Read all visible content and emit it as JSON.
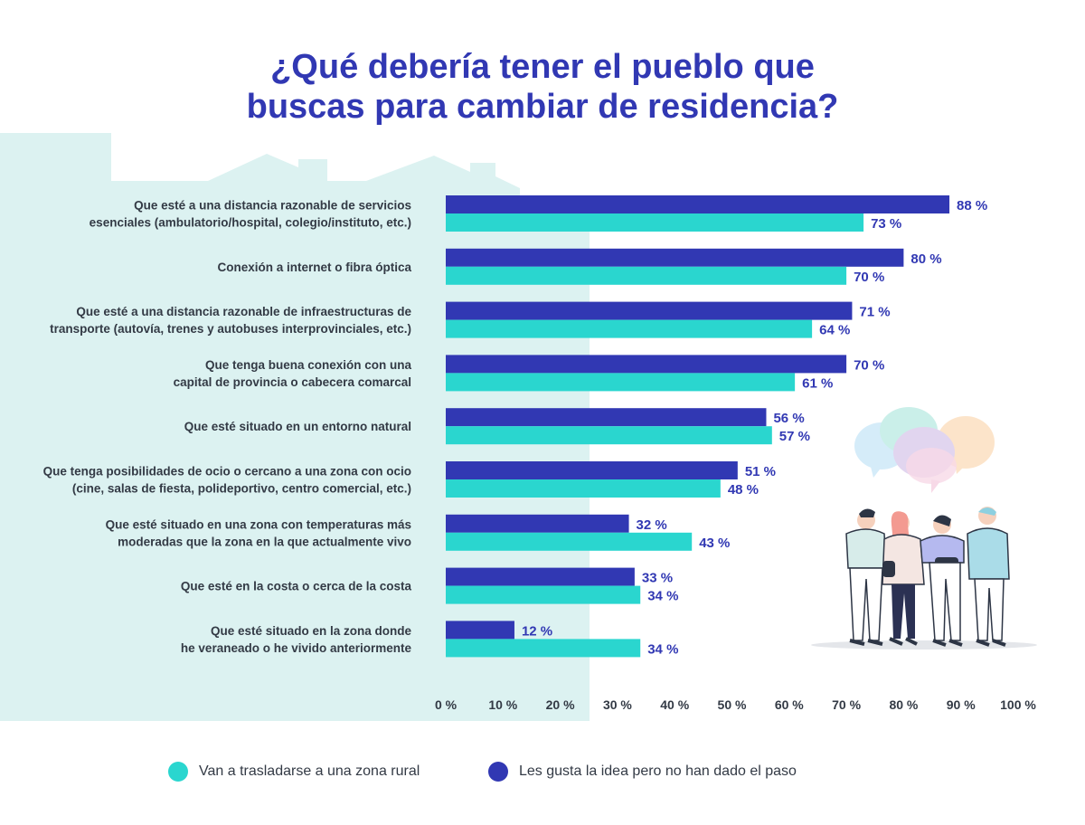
{
  "colors": {
    "rural": "#2ad6cf",
    "idea": "#3138b3",
    "title": "#3138b3",
    "label_text": "#333a45",
    "background_shape": "#dcf2f1"
  },
  "icons": [
    "house-skyline-shape",
    "speech-bubbles-illustration",
    "people-group-illustration"
  ],
  "chart_data": {
    "type": "bar",
    "orientation": "horizontal",
    "title_lines": [
      "¿Qué debería tener el pueblo que",
      "buscas para cambiar de residencia?"
    ],
    "categories": [
      [
        "Que esté a una distancia razonable de servicios",
        "esenciales (ambulatorio/hospital, colegio/instituto, etc.)"
      ],
      [
        "Conexión a internet o fibra óptica"
      ],
      [
        "Que esté a una distancia razonable de infraestructuras de",
        "transporte (autovía, trenes y autobuses interprovinciales, etc.)"
      ],
      [
        "Que tenga buena conexión con una",
        "capital de provincia o cabecera comarcal"
      ],
      [
        "Que esté situado en un entorno natural"
      ],
      [
        "Que tenga posibilidades de ocio o cercano a una zona con ocio",
        "(cine, salas de fiesta, polideportivo, centro comercial, etc.)"
      ],
      [
        "Que esté situado en una zona con temperaturas más",
        "moderadas que la zona en la que actualmente vivo"
      ],
      [
        "Que esté en la costa o cerca de la costa"
      ],
      [
        "Que esté situado en la zona donde",
        "he veraneado o he vivido anteriormente"
      ]
    ],
    "series": [
      {
        "name": "Les gusta la idea pero no han dado el paso",
        "values": [
          88,
          80,
          71,
          70,
          56,
          51,
          32,
          33,
          12
        ],
        "labels": [
          "88 %",
          "80 %",
          "71 %",
          "70 %",
          "56 %",
          "51 %",
          "32 %",
          "33 %",
          "12 %"
        ]
      },
      {
        "name": "Van a trasladarse a una zona rural",
        "values": [
          73,
          70,
          64,
          61,
          57,
          48,
          43,
          34,
          34
        ],
        "labels": [
          "73 %",
          "70 %",
          "64 %",
          "61 %",
          "57 %",
          "48 %",
          "43 %",
          "34 %",
          "34 %"
        ]
      }
    ],
    "x_ticks": [
      "0 %",
      "10 %",
      "20 %",
      "30 %",
      "40 %",
      "50 %",
      "60 %",
      "70 %",
      "80 %",
      "90 %",
      "100 %"
    ],
    "xlim": [
      0,
      100
    ],
    "grid": false,
    "legend_position": "bottom",
    "legend": [
      {
        "label": "Van a trasladarse a una zona rural",
        "series": 1
      },
      {
        "label": "Les gusta la idea pero no han dado el paso",
        "series": 0
      }
    ]
  }
}
